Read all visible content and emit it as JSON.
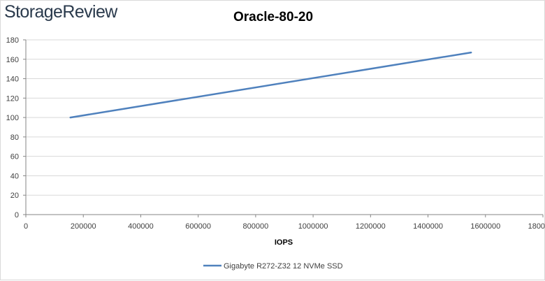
{
  "logo": {
    "text": "StorageReview"
  },
  "chart_data": {
    "type": "line",
    "title": "Oracle-80-20",
    "xlabel": "IOPS",
    "ylabel": "",
    "xlim": [
      0,
      1800000
    ],
    "ylim": [
      0,
      180
    ],
    "x_ticks": [
      0,
      200000,
      400000,
      600000,
      800000,
      1000000,
      1200000,
      1400000,
      1600000,
      1800000
    ],
    "y_ticks": [
      0,
      20,
      40,
      60,
      80,
      100,
      120,
      140,
      160,
      180
    ],
    "grid": true,
    "legend_position": "bottom",
    "series": [
      {
        "name": "Gigabyte R272-Z32 12 NVMe SSD",
        "color": "#4f81bd",
        "x": [
          155000,
          1550000
        ],
        "y": [
          100,
          167
        ]
      }
    ]
  }
}
